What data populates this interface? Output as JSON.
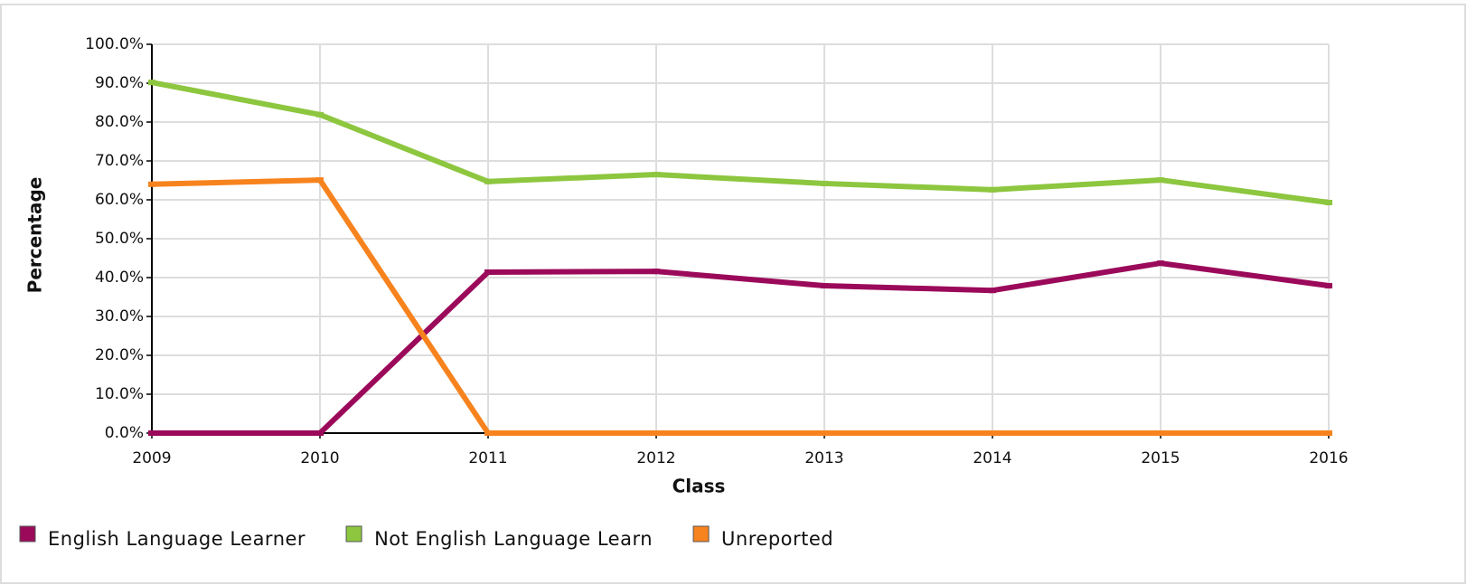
{
  "chart_data": {
    "type": "line",
    "categories": [
      "2009",
      "2010",
      "2011",
      "2012",
      "2013",
      "2014",
      "2015",
      "2016"
    ],
    "series": [
      {
        "name": "English Language Learner",
        "color": "#9b0a5a",
        "values": [
          0,
          0,
          41.4,
          41.6,
          37.9,
          36.7,
          43.7,
          37.9
        ]
      },
      {
        "name": "Not English Language Learn",
        "color": "#8dc63f",
        "values": [
          90.2,
          81.9,
          64.7,
          66.5,
          64.2,
          62.6,
          65.1,
          59.3
        ]
      },
      {
        "name": "Unreported",
        "color": "#f7831e",
        "values": [
          64.0,
          65.1,
          0,
          0,
          0,
          0,
          0,
          0
        ]
      }
    ],
    "xlabel": "Class",
    "ylabel": "Percentage",
    "ylim": [
      0,
      100
    ],
    "yticks": [
      {
        "value": 0,
        "label": "0.0%"
      },
      {
        "value": 10,
        "label": "10.0%"
      },
      {
        "value": 20,
        "label": "20.0%"
      },
      {
        "value": 30,
        "label": "30.0%"
      },
      {
        "value": 40,
        "label": "40.0%"
      },
      {
        "value": 50,
        "label": "50.0%"
      },
      {
        "value": 60,
        "label": "60.0%"
      },
      {
        "value": 70,
        "label": "70.0%"
      },
      {
        "value": 80,
        "label": "80.0%"
      },
      {
        "value": 90,
        "label": "90.0%"
      },
      {
        "value": 100,
        "label": "100.0%"
      }
    ],
    "grid": true,
    "legend": "bottom"
  }
}
